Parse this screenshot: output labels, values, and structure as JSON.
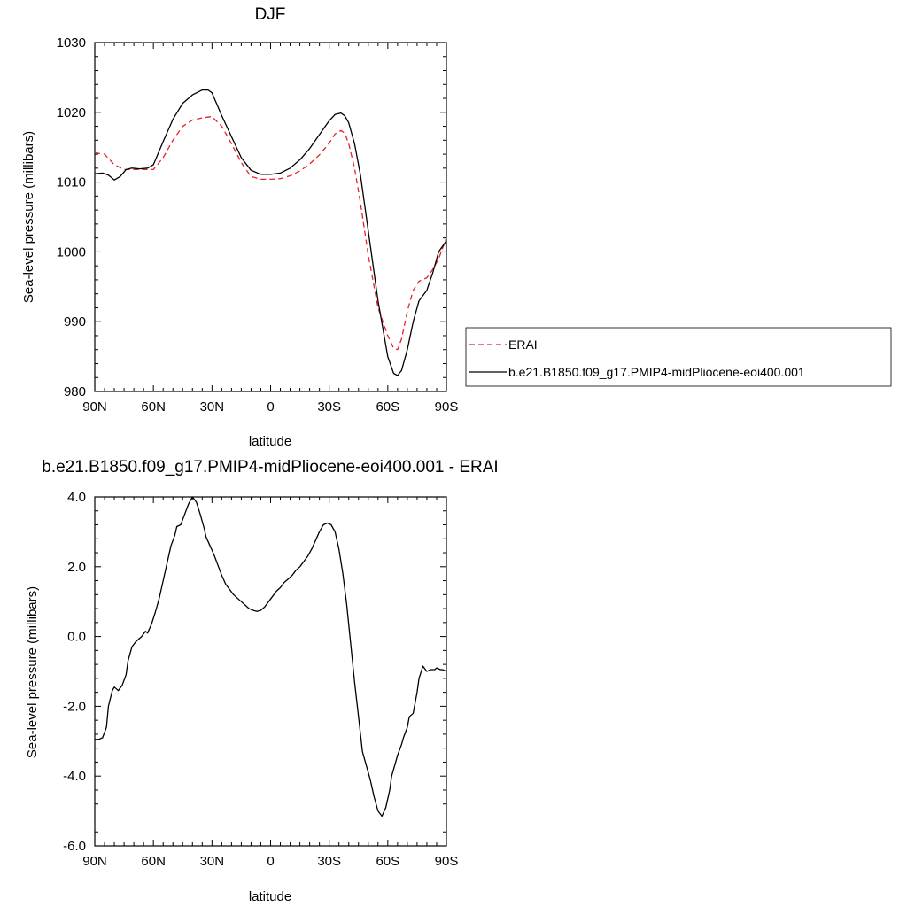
{
  "chart_data": [
    {
      "type": "line",
      "title": "DJF",
      "xlabel": "latitude",
      "ylabel": "Sea-level pressure (millibars)",
      "x_reversed": true,
      "xlim": [
        90,
        -90
      ],
      "ylim": [
        980,
        1030
      ],
      "x_ticks": [
        90,
        60,
        30,
        0,
        -30,
        -60,
        -90
      ],
      "x_tick_labels": [
        "90N",
        "60N",
        "30N",
        "0",
        "30S",
        "60S",
        "90S"
      ],
      "y_ticks": [
        980,
        990,
        1000,
        1010,
        1020,
        1030
      ],
      "y_tick_labels": [
        "980",
        "990",
        "1000",
        "1010",
        "1020",
        "1030"
      ],
      "grid": false,
      "legend_position": "right",
      "series": [
        {
          "name": "ERAI",
          "color": "#e8202a",
          "dash": "dashed",
          "x": [
            90,
            85,
            80,
            75,
            70,
            65,
            60,
            55,
            50,
            45,
            40,
            35,
            30,
            25,
            20,
            15,
            10,
            5,
            0,
            -5,
            -10,
            -15,
            -20,
            -25,
            -30,
            -33,
            -36,
            -38,
            -40,
            -43,
            -46,
            -50,
            -55,
            -60,
            -63,
            -65,
            -67,
            -70,
            -73,
            -76,
            -80,
            -83,
            -86,
            -90
          ],
          "y": [
            1014.2,
            1014.0,
            1012.5,
            1011.8,
            1011.8,
            1011.8,
            1011.8,
            1013.5,
            1016.0,
            1018.0,
            1018.9,
            1019.2,
            1019.4,
            1018.0,
            1015.5,
            1012.8,
            1010.8,
            1010.4,
            1010.4,
            1010.5,
            1010.9,
            1011.6,
            1012.6,
            1013.9,
            1015.6,
            1016.9,
            1017.4,
            1017.0,
            1015.5,
            1012.0,
            1007.0,
            999.5,
            992.0,
            988.0,
            986.2,
            986.0,
            987.5,
            991.5,
            994.5,
            995.8,
            996.3,
            997.5,
            999.0,
            1002.0
          ]
        },
        {
          "name": "b.e21.B1850.f09_g17.PMIP4-midPliocene-eoi400.001",
          "color": "#000000",
          "dash": "solid",
          "x": [
            90,
            86,
            83,
            80,
            77,
            74,
            71,
            67,
            63,
            60,
            55,
            50,
            45,
            40,
            35,
            32,
            30,
            28,
            25,
            20,
            15,
            10,
            5,
            0,
            -5,
            -10,
            -15,
            -20,
            -25,
            -30,
            -33,
            -36,
            -38,
            -40,
            -43,
            -46,
            -50,
            -55,
            -60,
            -63,
            -65,
            -67,
            -70,
            -73,
            -76,
            -80,
            -83,
            -86,
            -90
          ],
          "y": [
            1011.2,
            1011.3,
            1011.0,
            1010.3,
            1010.8,
            1011.8,
            1012.0,
            1011.9,
            1012.0,
            1012.5,
            1015.8,
            1019.0,
            1021.3,
            1022.5,
            1023.2,
            1023.2,
            1022.8,
            1021.5,
            1019.5,
            1016.5,
            1013.5,
            1011.7,
            1011.1,
            1011.1,
            1011.3,
            1012.0,
            1013.2,
            1014.8,
            1016.8,
            1018.8,
            1019.7,
            1019.9,
            1019.5,
            1018.5,
            1015.5,
            1011.0,
            1003.0,
            993.0,
            985.0,
            982.6,
            982.3,
            983.0,
            986.0,
            990.0,
            993.0,
            994.5,
            997.0,
            1000.0,
            1001.6
          ]
        }
      ]
    },
    {
      "type": "line",
      "title": "b.e21.B1850.f09_g17.PMIP4-midPliocene-eoi400.001 - ERAI",
      "xlabel": "latitude",
      "ylabel": "Sea-level pressure (millibars)",
      "x_reversed": true,
      "xlim": [
        90,
        -90
      ],
      "ylim": [
        -6.0,
        4.0
      ],
      "x_ticks": [
        90,
        60,
        30,
        0,
        -30,
        -60,
        -90
      ],
      "x_tick_labels": [
        "90N",
        "60N",
        "30N",
        "0",
        "30S",
        "60S",
        "90S"
      ],
      "y_ticks": [
        -6.0,
        -4.0,
        -2.0,
        0.0,
        2.0,
        4.0
      ],
      "y_tick_labels": [
        "-6.0",
        "-4.0",
        "-2.0",
        "0.0",
        "2.0",
        "4.0"
      ],
      "grid": false,
      "series": [
        {
          "color": "#000000",
          "dash": "solid",
          "x": [
            90,
            88,
            86,
            84,
            83,
            81,
            80,
            78,
            76,
            74,
            73,
            71,
            69,
            67,
            66,
            64,
            63,
            61,
            59,
            57,
            55,
            53,
            51,
            49,
            48,
            46,
            44,
            42,
            40,
            38,
            36,
            34,
            33,
            31,
            29,
            27,
            25,
            23,
            21,
            19,
            17,
            15,
            13,
            11,
            9,
            7,
            5,
            3,
            1,
            -1,
            -3,
            -5,
            -7,
            -9,
            -11,
            -13,
            -15,
            -17,
            -19,
            -21,
            -23,
            -25,
            -27,
            -29,
            -31,
            -33,
            -35,
            -37,
            -39,
            -41,
            -43,
            -45,
            -47,
            -49,
            -51,
            -53,
            -55,
            -57,
            -59,
            -61,
            -62,
            -64,
            -65,
            -67,
            -68,
            -70,
            -71,
            -73,
            -75,
            -76,
            -78,
            -80,
            -82,
            -84,
            -85,
            -87,
            -88,
            -90
          ],
          "y": [
            -2.95,
            -2.95,
            -2.9,
            -2.6,
            -2.0,
            -1.55,
            -1.45,
            -1.55,
            -1.4,
            -1.1,
            -0.7,
            -0.3,
            -0.15,
            -0.05,
            0.0,
            0.15,
            0.1,
            0.35,
            0.7,
            1.1,
            1.6,
            2.1,
            2.6,
            2.9,
            3.15,
            3.2,
            3.5,
            3.8,
            4.0,
            3.85,
            3.5,
            3.1,
            2.85,
            2.6,
            2.35,
            2.05,
            1.75,
            1.5,
            1.35,
            1.2,
            1.1,
            1.0,
            0.9,
            0.8,
            0.75,
            0.72,
            0.75,
            0.85,
            1.0,
            1.15,
            1.3,
            1.4,
            1.55,
            1.65,
            1.75,
            1.9,
            2.0,
            2.15,
            2.3,
            2.5,
            2.75,
            3.0,
            3.2,
            3.25,
            3.2,
            3.0,
            2.5,
            1.8,
            0.9,
            -0.2,
            -1.3,
            -2.3,
            -3.3,
            -3.7,
            -4.1,
            -4.6,
            -5.0,
            -5.15,
            -4.9,
            -4.4,
            -4.0,
            -3.6,
            -3.4,
            -3.1,
            -2.9,
            -2.6,
            -2.3,
            -2.2,
            -1.6,
            -1.2,
            -0.85,
            -1.0,
            -0.95,
            -0.95,
            -0.9,
            -0.95,
            -0.95,
            -1.0
          ]
        }
      ]
    }
  ]
}
